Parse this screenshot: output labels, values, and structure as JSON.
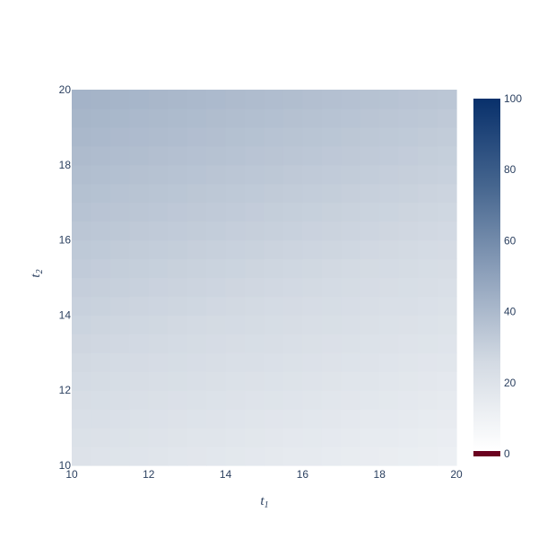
{
  "chart_data": {
    "type": "heatmap",
    "title": "",
    "xlabel": "t",
    "xlabel_subscript": "1",
    "ylabel": "t",
    "ylabel_subscript": "2",
    "x_range": [
      10,
      20
    ],
    "y_range": [
      10,
      20
    ],
    "x_ticks": [
      10,
      12,
      14,
      16,
      18,
      20
    ],
    "y_ticks": [
      10,
      12,
      14,
      16,
      18,
      20
    ],
    "x_tick_labels": [
      "10",
      "12",
      "14",
      "16",
      "18",
      "20"
    ],
    "y_tick_labels": [
      "10",
      "12",
      "14",
      "16",
      "18",
      "20"
    ],
    "x_centers": [
      10.25,
      10.75,
      11.25,
      11.75,
      12.25,
      12.75,
      13.25,
      13.75,
      14.25,
      14.75,
      15.25,
      15.75,
      16.25,
      16.75,
      17.25,
      17.75,
      18.25,
      18.75,
      19.25,
      19.75
    ],
    "y_centers": [
      10.25,
      10.75,
      11.25,
      11.75,
      12.25,
      12.75,
      13.25,
      13.75,
      14.25,
      14.75,
      15.25,
      15.75,
      16.25,
      16.75,
      17.25,
      17.75,
      18.25,
      18.75,
      19.25,
      19.75
    ],
    "z_model": {
      "description_free": true,
      "base": 19,
      "coef_y": 2.4,
      "coef_x": 0.9,
      "coef_xy": 0.02
    },
    "colorscale": [
      [
        0.0,
        "#ffffff"
      ],
      [
        0.25,
        "#d3dae3"
      ],
      [
        0.5,
        "#8ea1bb"
      ],
      [
        0.75,
        "#46668f"
      ],
      [
        1.0,
        "#08306b"
      ]
    ],
    "zmin": 0,
    "zmax": 100,
    "colorbar_ticks": [
      0,
      20,
      40,
      60,
      80,
      100
    ],
    "colorbar_tick_labels": [
      "0",
      "20",
      "40",
      "60",
      "80",
      "100"
    ],
    "colorbar_zero_color": "#6b0220",
    "grid": false,
    "legend": "none"
  }
}
